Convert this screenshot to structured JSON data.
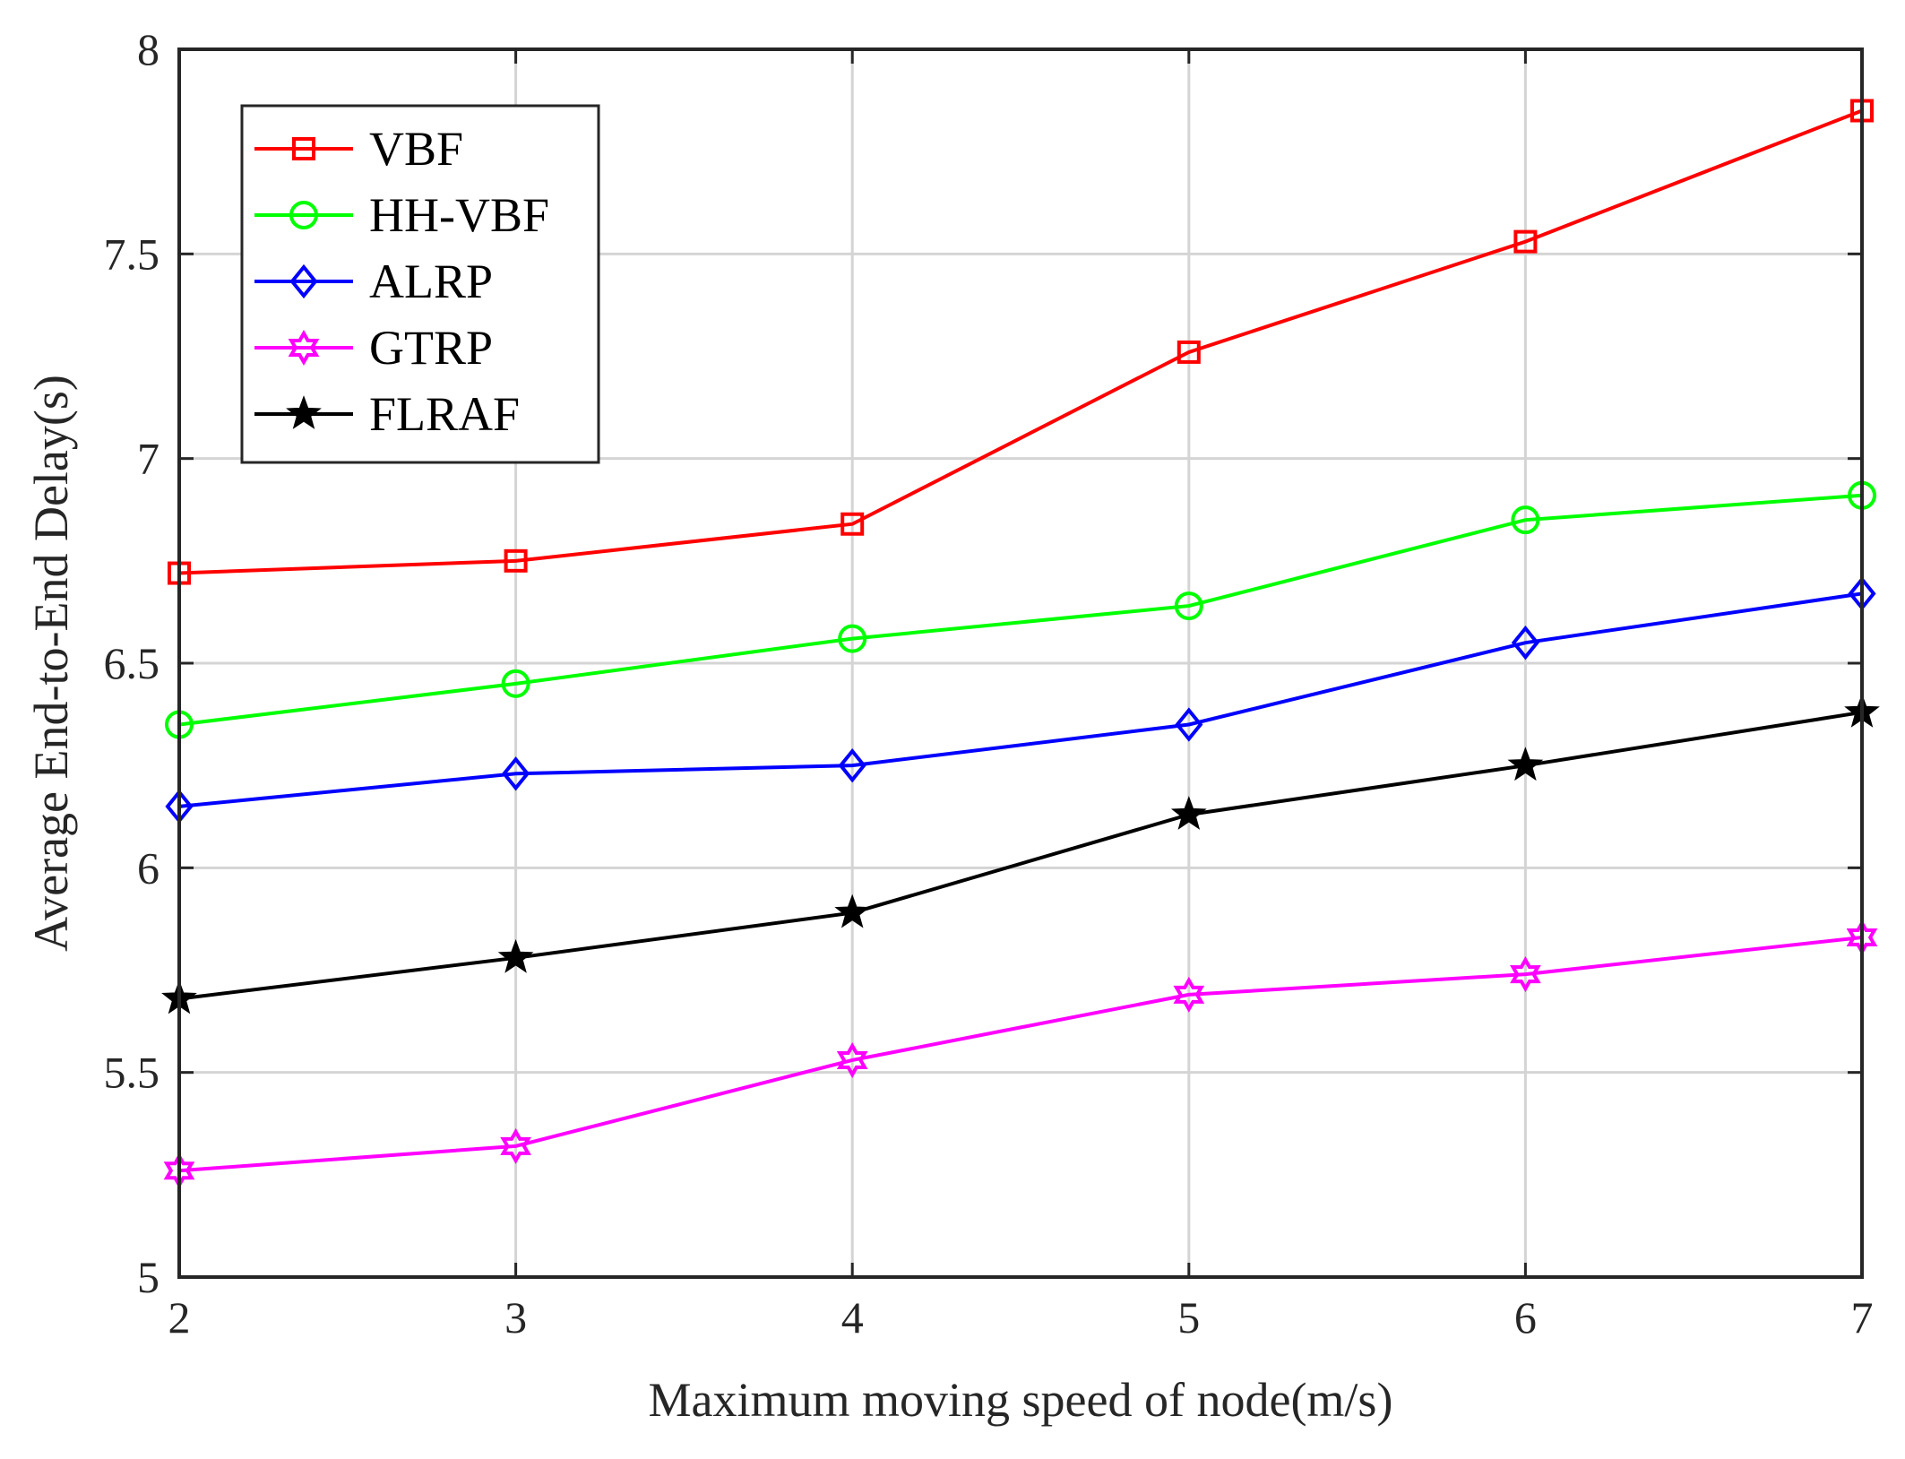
{
  "chart_data": {
    "type": "line",
    "title": "",
    "xlabel": "Maximum moving speed of node(m/s)",
    "ylabel": "Average End-to-End Delay(s)",
    "x": [
      2,
      3,
      4,
      5,
      6,
      7
    ],
    "xlim": [
      2,
      7
    ],
    "ylim": [
      5,
      8
    ],
    "xticks": [
      "2",
      "3",
      "4",
      "5",
      "6",
      "7"
    ],
    "yticks": [
      "5",
      "5.5",
      "6",
      "6.5",
      "7",
      "7.5",
      "8"
    ],
    "grid": true,
    "legend_position": "top-left",
    "series": [
      {
        "name": "VBF",
        "color": "#ff0000",
        "marker": "square",
        "values": [
          6.72,
          6.75,
          6.84,
          7.26,
          7.53,
          7.85
        ]
      },
      {
        "name": "HH-VBF",
        "color": "#00ff00",
        "marker": "circle",
        "values": [
          6.35,
          6.45,
          6.56,
          6.64,
          6.85,
          6.91
        ]
      },
      {
        "name": "ALRP",
        "color": "#0000ff",
        "marker": "diamond",
        "values": [
          6.15,
          6.23,
          6.25,
          6.35,
          6.55,
          6.67
        ]
      },
      {
        "name": "GTRP",
        "color": "#ff00ff",
        "marker": "hexagram",
        "values": [
          5.26,
          5.32,
          5.53,
          5.69,
          5.74,
          5.83
        ]
      },
      {
        "name": "FLRAF",
        "color": "#000000",
        "marker": "pentagram",
        "values": [
          5.68,
          5.78,
          5.89,
          6.13,
          6.25,
          6.38
        ]
      }
    ]
  }
}
